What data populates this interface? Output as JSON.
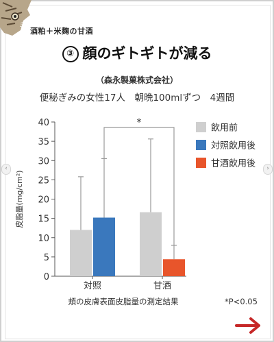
{
  "header": {
    "tag_text": "酒粕＋米麹の甘酒",
    "item_number": "③",
    "headline": "顔のギトギトが減る",
    "source": "（森永製菓株式会社）",
    "conditions": "便秘ぎみの女性17人　朝晩100mlずつ　4週間"
  },
  "chart_data": {
    "type": "bar",
    "categories": [
      "対照",
      "甘酒"
    ],
    "series": [
      {
        "name": "飲用前",
        "values": [
          12.0,
          16.6
        ],
        "error_upper": [
          25.8,
          35.6
        ]
      },
      {
        "name": "対照飲用後",
        "values": [
          15.2,
          null
        ],
        "error_upper": [
          30.5,
          null
        ]
      },
      {
        "name": "甘酒飲用後",
        "values": [
          null,
          4.4
        ],
        "error_upper": [
          null,
          8.0
        ]
      }
    ],
    "colors": {
      "飲用前": "#cfcfcf",
      "対照飲用後": "#3a78bd",
      "甘酒飲用後": "#e8552b",
      "axis": "#555555",
      "error_bar": "#999999"
    },
    "ylabel": "皮脂量(mg/cm²)",
    "ylim": [
      0,
      40
    ],
    "yticks": [
      0,
      5,
      10,
      15,
      20,
      25,
      30,
      35,
      40
    ],
    "xlabel": "頬の皮膚表面皮脂量の測定結果",
    "significance": {
      "mark": "*",
      "note": "*P<0.05"
    },
    "legend_position": "top-right",
    "grid": false
  },
  "nav": {
    "left_arrow": "‹",
    "right_arrow": "›",
    "next_icon": "right-arrow-icon"
  }
}
